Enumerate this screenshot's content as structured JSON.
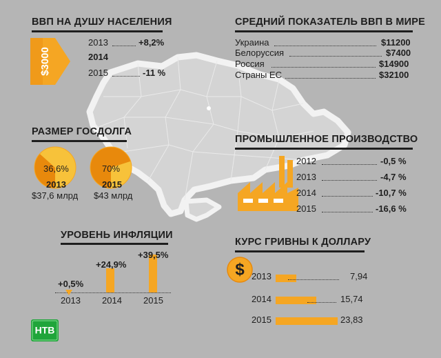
{
  "colors": {
    "background": "#b5b5b5",
    "orange": "#f5a623",
    "dark_orange": "#e8890c",
    "yellow": "#f7c23a",
    "map_fill": "#d4d4d4",
    "map_border": "#f0f0f0"
  },
  "gdp_per_capita": {
    "title": "ВВП НА ДУШУ НАСЕЛЕНИЯ",
    "badge": "$3000",
    "rows": [
      {
        "year": "2013",
        "value": "+8,2%"
      },
      {
        "year": "2014",
        "value": ""
      },
      {
        "year": "2015",
        "value": "-11 %"
      }
    ]
  },
  "world_gdp": {
    "title": "СРЕДНИЙ ПОКАЗАТЕЛЬ ВВП В МИРЕ",
    "rows": [
      {
        "country": "Украина",
        "value": "$11200"
      },
      {
        "country": "Белоруссия",
        "value": "$7400"
      },
      {
        "country": "Россия",
        "value": "$14900"
      },
      {
        "country": "Страны ЕС",
        "value": "$32100"
      }
    ]
  },
  "debt": {
    "title": "РАЗМЕР ГОСДОЛГА",
    "items": [
      {
        "percent": "36,6%",
        "year": "2013",
        "amount": "$37,6 млрд",
        "fraction": 0.366
      },
      {
        "percent": "70%",
        "year": "2015",
        "amount": "$43 млрд",
        "fraction": 0.7
      }
    ]
  },
  "industry": {
    "title": "ПРОМЫШЛЕННОЕ ПРОИЗВОДСТВО",
    "factory_icon": "factory-icon",
    "rows": [
      {
        "year": "2012",
        "value": "-0,5 %"
      },
      {
        "year": "2013",
        "value": "-4,7 %"
      },
      {
        "year": "2014",
        "value": "-10,7 %"
      },
      {
        "year": "2015",
        "value": "-16,6 %"
      }
    ]
  },
  "inflation": {
    "title": "УРОВЕНЬ ИНФЛЯЦИИ",
    "items": [
      {
        "year": "2013",
        "value": "+0,5%",
        "number": 0.5
      },
      {
        "year": "2014",
        "value": "+24,9%",
        "number": 24.9
      },
      {
        "year": "2015",
        "value": "+39,5%",
        "number": 39.5
      }
    ]
  },
  "hryvnia": {
    "title": "КУРС ГРИВНЫ К ДОЛЛАРУ",
    "coin_icon": "dollar-coin-icon",
    "coin_symbol": "$",
    "items": [
      {
        "year": "2013",
        "value": "7,94",
        "number": 7.94
      },
      {
        "year": "2014",
        "value": "15,74",
        "number": 15.74
      },
      {
        "year": "2015",
        "value": "23,83",
        "number": 23.83
      }
    ]
  },
  "logo": {
    "name": "ntv-logo",
    "text": "НТВ"
  }
}
